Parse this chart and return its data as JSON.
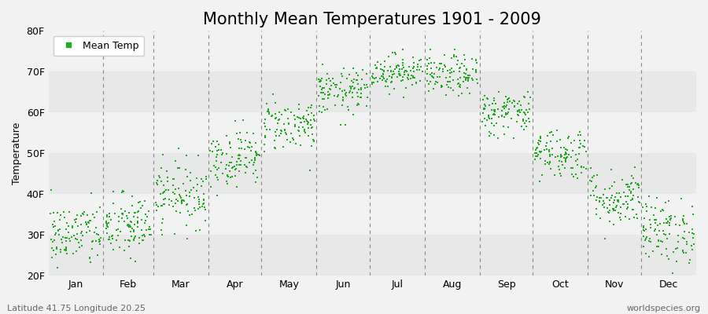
{
  "title": "Monthly Mean Temperatures 1901 - 2009",
  "ylabel": "Temperature",
  "ylim": [
    20,
    80
  ],
  "yticks": [
    20,
    30,
    40,
    50,
    60,
    70,
    80
  ],
  "ytick_labels": [
    "20F",
    "30F",
    "40F",
    "50F",
    "60F",
    "70F",
    "80F"
  ],
  "month_labels": [
    "Jan",
    "Feb",
    "Mar",
    "Apr",
    "May",
    "Jun",
    "Jul",
    "Aug",
    "Sep",
    "Oct",
    "Nov",
    "Dec"
  ],
  "month_days": [
    31,
    28,
    31,
    30,
    31,
    30,
    31,
    31,
    30,
    31,
    30,
    31
  ],
  "mean_temps_f": [
    30,
    32,
    40,
    49,
    57,
    65,
    70,
    69,
    60,
    50,
    39,
    31
  ],
  "std_temps_f": [
    4.0,
    4.0,
    4.0,
    3.5,
    3.2,
    2.8,
    2.2,
    2.5,
    2.8,
    3.2,
    3.5,
    4.0
  ],
  "dot_color": "#22aa22",
  "dot_size": 4,
  "background_color": "#f2f2f2",
  "band_colors": [
    "#e8e8e8",
    "#f2f2f2"
  ],
  "legend_label": "Mean Temp",
  "footer_left": "Latitude 41.75 Longitude 20.25",
  "footer_right": "worldspecies.org",
  "title_fontsize": 15,
  "axis_label_fontsize": 9,
  "tick_fontsize": 9,
  "footer_fontsize": 8,
  "num_years": 109,
  "xlim": [
    0,
    365
  ]
}
